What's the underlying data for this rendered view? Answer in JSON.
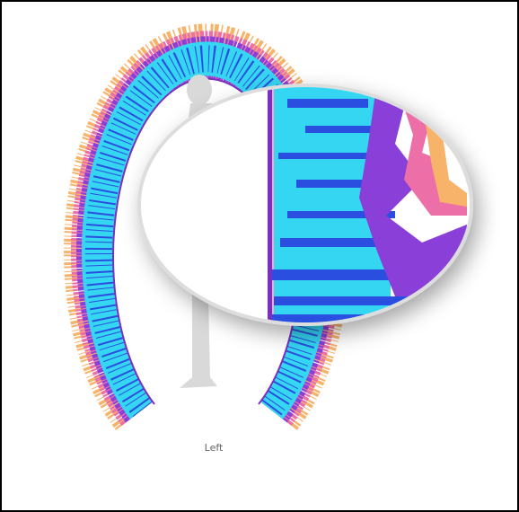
{
  "label": "Left"
}
